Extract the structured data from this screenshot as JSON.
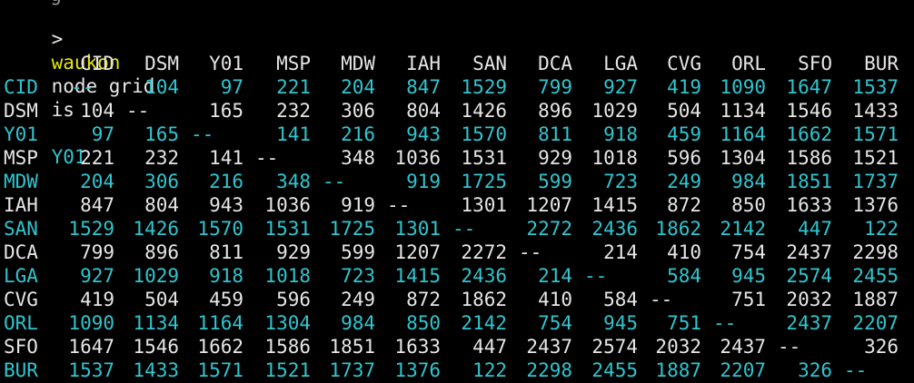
{
  "terminal": {
    "top_cut_text": "' g",
    "command_line": {
      "prompt": ">",
      "command": "node grid"
    },
    "status_line": {
      "name": "waukon",
      "middle": "is",
      "code": "Y01"
    },
    "colors": {
      "background": "#000000",
      "text": "#e6e6e6",
      "cyan": "#2fc6d0",
      "yellow": "#e5e510"
    },
    "table": {
      "headers": [
        "CID",
        "DSM",
        "Y01",
        "MSP",
        "MDW",
        "IAH",
        "SAN",
        "DCA",
        "LGA",
        "CVG",
        "ORL",
        "SFO",
        "BUR"
      ],
      "rows": [
        {
          "label": "CID",
          "color": "cyan",
          "values": [
            "--",
            "104",
            "97",
            "221",
            "204",
            "847",
            "1529",
            "799",
            "927",
            "419",
            "1090",
            "1647",
            "1537"
          ]
        },
        {
          "label": "DSM",
          "color": "white",
          "values": [
            "104",
            "--",
            "165",
            "232",
            "306",
            "804",
            "1426",
            "896",
            "1029",
            "504",
            "1134",
            "1546",
            "1433"
          ]
        },
        {
          "label": "Y01",
          "color": "cyan",
          "values": [
            "97",
            "165",
            "--",
            "141",
            "216",
            "943",
            "1570",
            "811",
            "918",
            "459",
            "1164",
            "1662",
            "1571"
          ]
        },
        {
          "label": "MSP",
          "color": "white",
          "values": [
            "221",
            "232",
            "141",
            "--",
            "348",
            "1036",
            "1531",
            "929",
            "1018",
            "596",
            "1304",
            "1586",
            "1521"
          ]
        },
        {
          "label": "MDW",
          "color": "cyan",
          "values": [
            "204",
            "306",
            "216",
            "348",
            "--",
            "919",
            "1725",
            "599",
            "723",
            "249",
            "984",
            "1851",
            "1737"
          ]
        },
        {
          "label": "IAH",
          "color": "white",
          "values": [
            "847",
            "804",
            "943",
            "1036",
            "919",
            "--",
            "1301",
            "1207",
            "1415",
            "872",
            "850",
            "1633",
            "1376"
          ]
        },
        {
          "label": "SAN",
          "color": "cyan",
          "values": [
            "1529",
            "1426",
            "1570",
            "1531",
            "1725",
            "1301",
            "--",
            "2272",
            "2436",
            "1862",
            "2142",
            "447",
            "122"
          ]
        },
        {
          "label": "DCA",
          "color": "white",
          "values": [
            "799",
            "896",
            "811",
            "929",
            "599",
            "1207",
            "2272",
            "--",
            "214",
            "410",
            "754",
            "2437",
            "2298"
          ]
        },
        {
          "label": "LGA",
          "color": "cyan",
          "values": [
            "927",
            "1029",
            "918",
            "1018",
            "723",
            "1415",
            "2436",
            "214",
            "--",
            "584",
            "945",
            "2574",
            "2455"
          ]
        },
        {
          "label": "CVG",
          "color": "white",
          "values": [
            "419",
            "504",
            "459",
            "596",
            "249",
            "872",
            "1862",
            "410",
            "584",
            "--",
            "751",
            "2032",
            "1887"
          ]
        },
        {
          "label": "ORL",
          "color": "cyan",
          "values": [
            "1090",
            "1134",
            "1164",
            "1304",
            "984",
            "850",
            "2142",
            "754",
            "945",
            "751",
            "--",
            "2437",
            "2207"
          ]
        },
        {
          "label": "SFO",
          "color": "white",
          "values": [
            "1647",
            "1546",
            "1662",
            "1586",
            "1851",
            "1633",
            "447",
            "2437",
            "2574",
            "2032",
            "2437",
            "--",
            "326"
          ]
        },
        {
          "label": "BUR",
          "color": "cyan",
          "values": [
            "1537",
            "1433",
            "1571",
            "1521",
            "1737",
            "1376",
            "122",
            "2298",
            "2455",
            "1887",
            "2207",
            "326",
            "--"
          ]
        }
      ]
    }
  }
}
